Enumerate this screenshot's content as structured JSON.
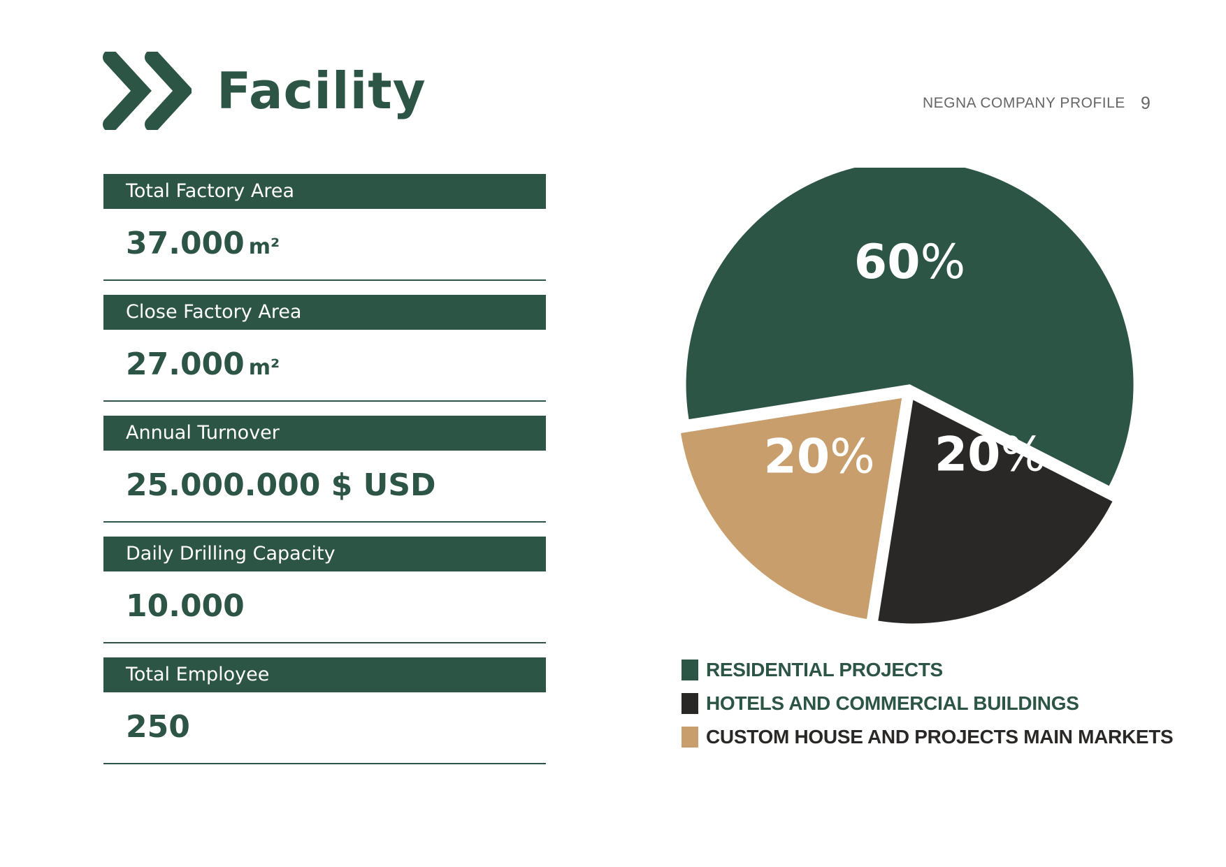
{
  "header": {
    "title": "Facility",
    "document_name": "NEGNA COMPANY PROFILE",
    "page_number": "9"
  },
  "colors": {
    "brand_green": "#2c5545",
    "dark": "#2a2827",
    "tan": "#c89f6c",
    "white": "#ffffff"
  },
  "stats": [
    {
      "label": "Total Factory Area",
      "value": "37.000",
      "unit": "m²"
    },
    {
      "label": "Close Factory Area",
      "value": "27.000",
      "unit": "m²"
    },
    {
      "label": "Annual Turnover",
      "value": "25.000.000 $ USD",
      "unit": ""
    },
    {
      "label": "Daily Drilling Capacity",
      "value": "10.000",
      "unit": ""
    },
    {
      "label": "Total Employee",
      "value": "250",
      "unit": ""
    }
  ],
  "chart_data": {
    "type": "pie",
    "slices": [
      {
        "label": "RESIDENTIAL PROJECTS",
        "value": 60,
        "display_number": "60",
        "display_sign": "%",
        "color": "#2c5545"
      },
      {
        "label": "HOTELS AND COMMERCIAL BUILDINGS",
        "value": 20,
        "display_number": "20",
        "display_sign": "%",
        "color": "#2a2827"
      },
      {
        "label": "CUSTOM HOUSE AND PROJECTS MAIN MARKETS",
        "value": 20,
        "display_number": "20",
        "display_sign": "%",
        "color": "#c89f6c"
      }
    ],
    "legend_position": "bottom"
  },
  "legend": [
    {
      "label": "RESIDENTIAL PROJECTS",
      "color": "#2c5545",
      "text_color": "#2c5545"
    },
    {
      "label": "HOTELS AND COMMERCIAL BUILDINGS",
      "color": "#2a2827",
      "text_color": "#2c5545"
    },
    {
      "label": "CUSTOM HOUSE AND PROJECTS MAIN MARKETS",
      "color": "#c89f6c",
      "text_color": "#2a2827"
    }
  ]
}
